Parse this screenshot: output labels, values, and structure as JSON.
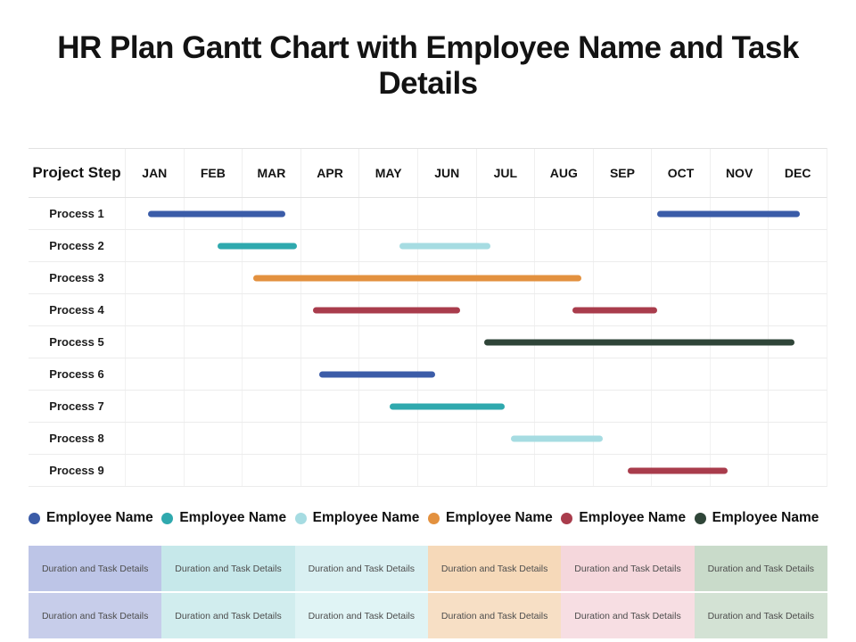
{
  "title": "HR Plan Gantt Chart with Employee Name and Task Details",
  "colors": {
    "blue": "#3b5ca8",
    "teal": "#2fa9ae",
    "light_cyan": "#a6dce2",
    "orange": "#e3913f",
    "maroon": "#a93c4c",
    "dark_green": "#2f4538"
  },
  "chart_data": {
    "type": "gantt",
    "title": "HR Plan Gantt Chart with Employee Name and Task Details",
    "row_header": "Project Step",
    "x_labels": [
      "JAN",
      "FEB",
      "MAR",
      "APR",
      "MAY",
      "JUN",
      "JUL",
      "AUG",
      "SEP",
      "OCT",
      "NOV",
      "DEC"
    ],
    "x_unit": "month",
    "x_range": [
      0,
      12
    ],
    "grid": true,
    "tasks": [
      {
        "name": "Process 1",
        "bars": [
          {
            "start": 0.4,
            "end": 2.75,
            "color": "blue"
          },
          {
            "start": 9.1,
            "end": 11.55,
            "color": "blue"
          }
        ]
      },
      {
        "name": "Process 2",
        "bars": [
          {
            "start": 1.58,
            "end": 2.95,
            "color": "teal"
          },
          {
            "start": 4.7,
            "end": 6.25,
            "color": "light_cyan"
          }
        ]
      },
      {
        "name": "Process 3",
        "bars": [
          {
            "start": 2.2,
            "end": 7.8,
            "color": "orange"
          }
        ]
      },
      {
        "name": "Process 4",
        "bars": [
          {
            "start": 3.22,
            "end": 5.73,
            "color": "maroon"
          },
          {
            "start": 7.65,
            "end": 9.1,
            "color": "maroon"
          }
        ]
      },
      {
        "name": "Process 5",
        "bars": [
          {
            "start": 6.15,
            "end": 11.45,
            "color": "dark_green"
          }
        ]
      },
      {
        "name": "Process 6",
        "bars": [
          {
            "start": 3.33,
            "end": 5.3,
            "color": "blue"
          }
        ]
      },
      {
        "name": "Process 7",
        "bars": [
          {
            "start": 4.53,
            "end": 6.5,
            "color": "teal"
          }
        ]
      },
      {
        "name": "Process 8",
        "bars": [
          {
            "start": 6.6,
            "end": 8.17,
            "color": "light_cyan"
          }
        ]
      },
      {
        "name": "Process 9",
        "bars": [
          {
            "start": 8.6,
            "end": 10.3,
            "color": "maroon"
          }
        ]
      }
    ]
  },
  "legend": {
    "items": [
      {
        "label": "Employee Name",
        "color": "blue"
      },
      {
        "label": "Employee Name",
        "color": "teal"
      },
      {
        "label": "Employee Name",
        "color": "light_cyan"
      },
      {
        "label": "Employee Name",
        "color": "orange"
      },
      {
        "label": "Employee Name",
        "color": "maroon"
      },
      {
        "label": "Employee Name",
        "color": "dark_green"
      }
    ]
  },
  "details": {
    "cell_text": "Duration and Task Details",
    "rows": 2,
    "columns": [
      {
        "row_bgs": [
          "#bdc5e7",
          "#c7cdea"
        ]
      },
      {
        "row_bgs": [
          "#c6e8ea",
          "#d1edee"
        ]
      },
      {
        "row_bgs": [
          "#d9f0f2",
          "#e0f4f5"
        ]
      },
      {
        "row_bgs": [
          "#f6d9b9",
          "#f7dfc5"
        ]
      },
      {
        "row_bgs": [
          "#f5d7dc",
          "#f7dee3"
        ]
      },
      {
        "row_bgs": [
          "#c9dbca",
          "#d3e2d4"
        ]
      }
    ]
  }
}
